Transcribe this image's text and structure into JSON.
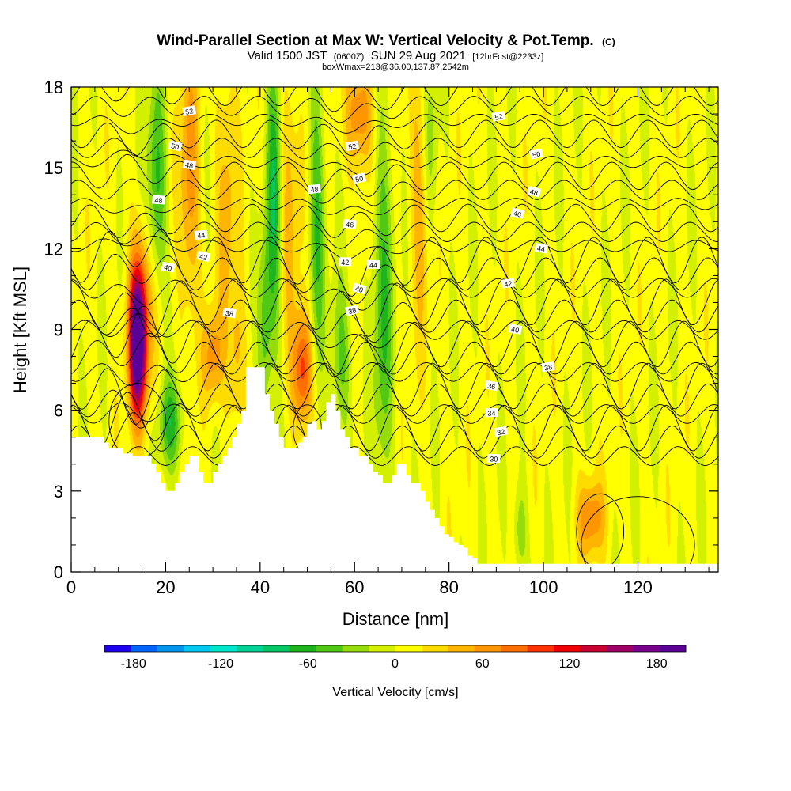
{
  "title": {
    "main": "Wind-Parallel Section at Max W: Vertical Velocity & Pot.Temp.",
    "mark": "(C)",
    "valid_a": "Valid 1500 JST",
    "valid_utc": "(0600Z)",
    "valid_b": "SUN 29 Aug 2021",
    "forecast": "[12hrFcst@2233z]",
    "box": "boxWmax=213@36.00,137.87,2542m"
  },
  "chart_data": {
    "type": "heatmap",
    "xlabel": "Distance [nm]",
    "ylabel": "Height [Kft MSL]",
    "xlim": [
      0,
      137
    ],
    "ylim": [
      0,
      18
    ],
    "x_ticks": [
      0,
      20,
      40,
      60,
      80,
      100,
      120
    ],
    "y_ticks": [
      0,
      3,
      6,
      9,
      12,
      15,
      18
    ],
    "colorbar": {
      "label": "Vertical Velocity [cm/s]",
      "ticks": [
        -180,
        -120,
        -60,
        0,
        60,
        120,
        180
      ],
      "range": [
        -200,
        200
      ],
      "colors": [
        "#1e00f0",
        "#0064ff",
        "#0096f0",
        "#00c8f0",
        "#00e6c8",
        "#00d296",
        "#00c864",
        "#1eb41e",
        "#50c814",
        "#96dc0a",
        "#d2f000",
        "#ffff00",
        "#ffdc00",
        "#ffb400",
        "#ff9600",
        "#ff6e00",
        "#ff3200",
        "#f00000",
        "#c80032",
        "#a00064",
        "#78008c",
        "#5a0096"
      ]
    },
    "terrain_kft": [
      [
        0,
        5
      ],
      [
        6,
        5
      ],
      [
        7,
        4.8
      ],
      [
        8,
        4.6
      ],
      [
        9,
        4.6
      ],
      [
        10,
        4.6
      ],
      [
        11,
        4.4
      ],
      [
        12,
        4.4
      ],
      [
        13,
        4.3
      ],
      [
        14,
        4.3
      ],
      [
        15,
        4.3
      ],
      [
        16,
        4.3
      ],
      [
        17,
        4
      ],
      [
        18,
        3.7
      ],
      [
        19,
        3.3
      ],
      [
        20,
        3
      ],
      [
        21,
        3
      ],
      [
        22,
        3.3
      ],
      [
        23,
        3.7
      ],
      [
        24,
        4
      ],
      [
        25,
        4.3
      ],
      [
        26,
        4.3
      ],
      [
        27,
        3.7
      ],
      [
        28,
        3.3
      ],
      [
        29,
        3.3
      ],
      [
        30,
        3.7
      ],
      [
        31,
        4
      ],
      [
        32,
        4.3
      ],
      [
        33,
        4.6
      ],
      [
        34,
        5
      ],
      [
        35,
        5.5
      ],
      [
        36,
        6
      ],
      [
        37,
        7.6
      ],
      [
        38,
        7.6
      ],
      [
        39,
        7.6
      ],
      [
        40,
        7.6
      ],
      [
        41,
        6.6
      ],
      [
        42,
        6
      ],
      [
        43,
        5.5
      ],
      [
        44,
        5
      ],
      [
        45,
        4.6
      ],
      [
        46,
        4.6
      ],
      [
        47,
        4.6
      ],
      [
        48,
        4.8
      ],
      [
        49,
        5
      ],
      [
        50,
        5.5
      ],
      [
        51,
        5.6
      ],
      [
        52,
        5.3
      ],
      [
        53,
        5.6
      ],
      [
        54,
        6.3
      ],
      [
        55,
        6.6
      ],
      [
        56,
        6
      ],
      [
        57,
        5.3
      ],
      [
        58,
        5
      ],
      [
        59,
        4.6
      ],
      [
        60,
        4.6
      ],
      [
        61,
        4.3
      ],
      [
        62,
        4.3
      ],
      [
        63,
        4
      ],
      [
        64,
        3.7
      ],
      [
        65,
        3.6
      ],
      [
        66,
        3.3
      ],
      [
        67,
        3.3
      ],
      [
        68,
        3.6
      ],
      [
        69,
        4
      ],
      [
        70,
        4
      ],
      [
        71,
        3.6
      ],
      [
        72,
        3.3
      ],
      [
        73,
        3.3
      ],
      [
        74,
        3
      ],
      [
        75,
        2.6
      ],
      [
        76,
        2.3
      ],
      [
        77,
        2
      ],
      [
        78,
        1.7
      ],
      [
        79,
        1.4
      ],
      [
        80,
        1.3
      ],
      [
        81,
        1.1
      ],
      [
        82,
        1
      ],
      [
        83,
        0.9
      ],
      [
        84,
        0.6
      ],
      [
        85,
        0.5
      ],
      [
        86,
        0.3
      ],
      [
        87,
        0.3
      ],
      [
        137,
        0.3
      ]
    ],
    "velocity_features": [
      {
        "x": 14,
        "z": 8.5,
        "sx": 1.2,
        "sz": 1.8,
        "w": 210
      },
      {
        "x": 15.5,
        "z": 9.5,
        "sx": 2.2,
        "sz": 2.5,
        "w": 60
      },
      {
        "x": 21,
        "z": 5.5,
        "sx": 1.8,
        "sz": 1.2,
        "w": -70
      },
      {
        "x": 18,
        "z": 14,
        "sx": 1.5,
        "sz": 3.0,
        "w": -70
      },
      {
        "x": 25,
        "z": 14.5,
        "sx": 1.5,
        "sz": 3.5,
        "w": 60
      },
      {
        "x": 30,
        "z": 8,
        "sx": 1.5,
        "sz": 1.2,
        "w": 60
      },
      {
        "x": 35,
        "z": 8,
        "sx": 1.2,
        "sz": 2.0,
        "w": 40
      },
      {
        "x": 33,
        "z": 14,
        "sx": 1.5,
        "sz": 3.5,
        "w": 40
      },
      {
        "x": 43,
        "z": 14,
        "sx": 1.2,
        "sz": 4.0,
        "w": -80
      },
      {
        "x": 41,
        "z": 9,
        "sx": 1.0,
        "sz": 2.5,
        "w": -50
      },
      {
        "x": 49,
        "z": 7.5,
        "sx": 1.5,
        "sz": 1.5,
        "w": 100
      },
      {
        "x": 46,
        "z": 14,
        "sx": 1.8,
        "sz": 3.5,
        "w": 40
      },
      {
        "x": 52,
        "z": 13,
        "sx": 1.2,
        "sz": 4.0,
        "w": -60
      },
      {
        "x": 61,
        "z": 17,
        "sx": 2.0,
        "sz": 1.5,
        "w": 70
      },
      {
        "x": 57,
        "z": 8,
        "sx": 1.5,
        "sz": 2.0,
        "w": -50
      },
      {
        "x": 66,
        "z": 10,
        "sx": 1.5,
        "sz": 5.0,
        "w": -60
      },
      {
        "x": 74,
        "z": 14,
        "sx": 1.5,
        "sz": 3.5,
        "w": 45
      },
      {
        "x": 76,
        "z": 16,
        "sx": 1.2,
        "sz": 2.5,
        "w": -40
      },
      {
        "x": 110,
        "z": 2,
        "sx": 2.0,
        "sz": 1.0,
        "w": 65
      },
      {
        "x": 95,
        "z": 1.5,
        "sx": 1.0,
        "sz": 1.2,
        "w": -40
      }
    ],
    "contour_labels": [
      {
        "text": "52",
        "x": 25,
        "z": 17.1
      },
      {
        "text": "50",
        "x": 22,
        "z": 15.8
      },
      {
        "text": "48",
        "x": 25,
        "z": 15.1
      },
      {
        "text": "48",
        "x": 18.5,
        "z": 13.8
      },
      {
        "text": "44",
        "x": 27.5,
        "z": 12.5
      },
      {
        "text": "42",
        "x": 28,
        "z": 11.7
      },
      {
        "text": "40",
        "x": 20.5,
        "z": 11.3
      },
      {
        "text": "38",
        "x": 33.5,
        "z": 9.6
      },
      {
        "text": "52",
        "x": 59.5,
        "z": 15.8
      },
      {
        "text": "50",
        "x": 61,
        "z": 14.6
      },
      {
        "text": "48",
        "x": 51.5,
        "z": 14.2
      },
      {
        "text": "46",
        "x": 59,
        "z": 12.9
      },
      {
        "text": "42",
        "x": 58,
        "z": 11.5
      },
      {
        "text": "44",
        "x": 64,
        "z": 11.4
      },
      {
        "text": "40",
        "x": 61,
        "z": 10.5
      },
      {
        "text": "38",
        "x": 59.5,
        "z": 9.7
      },
      {
        "text": "52",
        "x": 90.5,
        "z": 16.9
      },
      {
        "text": "50",
        "x": 98.5,
        "z": 15.5
      },
      {
        "text": "48",
        "x": 98,
        "z": 14.1
      },
      {
        "text": "46",
        "x": 94.5,
        "z": 13.3
      },
      {
        "text": "44",
        "x": 99.5,
        "z": 12.0
      },
      {
        "text": "42",
        "x": 92.5,
        "z": 10.7
      },
      {
        "text": "40",
        "x": 94,
        "z": 9.0
      },
      {
        "text": "38",
        "x": 101,
        "z": 7.6
      },
      {
        "text": "36",
        "x": 89,
        "z": 6.9
      },
      {
        "text": "34",
        "x": 89,
        "z": 5.9
      },
      {
        "text": "32",
        "x": 91,
        "z": 5.2
      },
      {
        "text": "30",
        "x": 89.5,
        "z": 4.2
      }
    ]
  }
}
